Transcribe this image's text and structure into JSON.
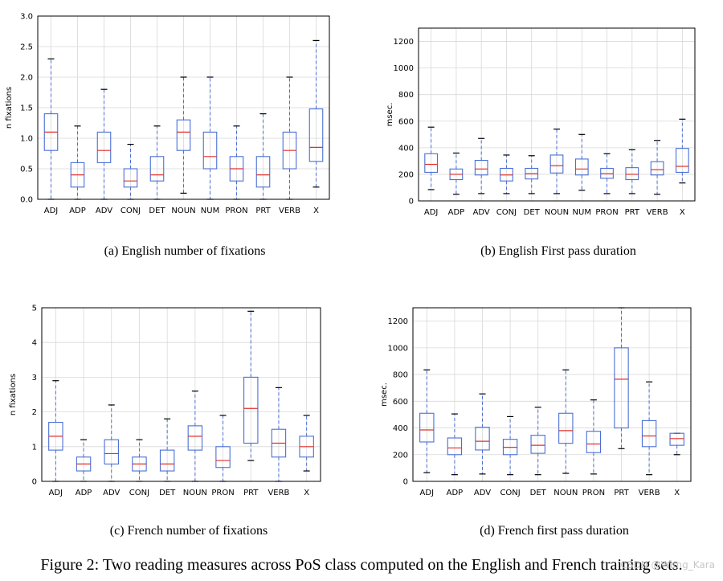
{
  "figure": {
    "caption": "Figure 2: Two reading measures across PoS class computed on the English and French training sets.",
    "watermark": "CSDN @Wimg_Kara"
  },
  "colors": {
    "box": "#4a6fd6",
    "median": "#e0302a",
    "grid": "#d8d8d8",
    "axis": "#000000"
  },
  "chart_data": [
    {
      "id": "a",
      "type": "box",
      "caption": "(a) English number of fixations",
      "ylabel": "n fixations",
      "xlabel": "",
      "ylim": [
        0,
        3.0
      ],
      "yticks": [
        "0.0",
        "0.5",
        "1.0",
        "1.5",
        "2.0",
        "2.5",
        "3.0"
      ],
      "ytick_values": [
        0,
        0.5,
        1.0,
        1.5,
        2.0,
        2.5,
        3.0
      ],
      "categories": [
        "ADJ",
        "ADP",
        "ADV",
        "CONJ",
        "DET",
        "NOUN",
        "NUM",
        "PRON",
        "PRT",
        "VERB",
        "X"
      ],
      "boxes": [
        {
          "whislo": 0.0,
          "q1": 0.8,
          "med": 1.1,
          "q3": 1.4,
          "whishi": 2.3
        },
        {
          "whislo": 0.0,
          "q1": 0.2,
          "med": 0.4,
          "q3": 0.6,
          "whishi": 1.2
        },
        {
          "whislo": 0.0,
          "q1": 0.6,
          "med": 0.8,
          "q3": 1.1,
          "whishi": 1.8
        },
        {
          "whislo": 0.0,
          "q1": 0.2,
          "med": 0.3,
          "q3": 0.5,
          "whishi": 0.9
        },
        {
          "whislo": 0.0,
          "q1": 0.3,
          "med": 0.4,
          "q3": 0.7,
          "whishi": 1.2
        },
        {
          "whislo": 0.1,
          "q1": 0.8,
          "med": 1.1,
          "q3": 1.3,
          "whishi": 2.0
        },
        {
          "whislo": 0.0,
          "q1": 0.5,
          "med": 0.7,
          "q3": 1.1,
          "whishi": 2.0
        },
        {
          "whislo": 0.0,
          "q1": 0.3,
          "med": 0.5,
          "q3": 0.7,
          "whishi": 1.2
        },
        {
          "whislo": 0.0,
          "q1": 0.2,
          "med": 0.4,
          "q3": 0.7,
          "whishi": 1.4
        },
        {
          "whislo": 0.0,
          "q1": 0.5,
          "med": 0.8,
          "q3": 1.1,
          "whishi": 2.0
        },
        {
          "whislo": 0.2,
          "q1": 0.62,
          "med": 0.85,
          "q3": 1.48,
          "whishi": 2.6
        }
      ]
    },
    {
      "id": "b",
      "type": "box",
      "caption": "(b) English First pass duration",
      "ylabel": "msec.",
      "xlabel": "",
      "ylim": [
        0,
        1300
      ],
      "yticks": [
        "0",
        "200",
        "400",
        "600",
        "800",
        "1000",
        "1200"
      ],
      "ytick_values": [
        0,
        200,
        400,
        600,
        800,
        1000,
        1200
      ],
      "categories": [
        "ADJ",
        "ADP",
        "ADV",
        "CONJ",
        "DET",
        "NOUN",
        "NUM",
        "PRON",
        "PRT",
        "VERB",
        "X"
      ],
      "boxes": [
        {
          "whislo": 85,
          "q1": 215,
          "med": 275,
          "q3": 355,
          "whishi": 555
        },
        {
          "whislo": 50,
          "q1": 160,
          "med": 200,
          "q3": 240,
          "whishi": 360
        },
        {
          "whislo": 55,
          "q1": 195,
          "med": 240,
          "q3": 305,
          "whishi": 470
        },
        {
          "whislo": 55,
          "q1": 150,
          "med": 195,
          "q3": 245,
          "whishi": 345
        },
        {
          "whislo": 55,
          "q1": 165,
          "med": 205,
          "q3": 245,
          "whishi": 340
        },
        {
          "whislo": 55,
          "q1": 210,
          "med": 265,
          "q3": 345,
          "whishi": 540
        },
        {
          "whislo": 80,
          "q1": 195,
          "med": 240,
          "q3": 315,
          "whishi": 500
        },
        {
          "whislo": 55,
          "q1": 170,
          "med": 205,
          "q3": 245,
          "whishi": 355
        },
        {
          "whislo": 55,
          "q1": 160,
          "med": 200,
          "q3": 250,
          "whishi": 385
        },
        {
          "whislo": 50,
          "q1": 195,
          "med": 235,
          "q3": 295,
          "whishi": 455
        },
        {
          "whislo": 135,
          "q1": 215,
          "med": 260,
          "q3": 395,
          "whishi": 615
        }
      ]
    },
    {
      "id": "c",
      "type": "box",
      "caption": "(c) French number of fixations",
      "ylabel": "n fixations",
      "xlabel": "",
      "ylim": [
        0,
        5
      ],
      "yticks": [
        "0",
        "1",
        "2",
        "3",
        "4",
        "5"
      ],
      "ytick_values": [
        0,
        1,
        2,
        3,
        4,
        5
      ],
      "categories": [
        "ADJ",
        "ADP",
        "ADV",
        "CONJ",
        "DET",
        "NOUN",
        "PRON",
        "PRT",
        "VERB",
        "X"
      ],
      "boxes": [
        {
          "whislo": 0.0,
          "q1": 0.9,
          "med": 1.3,
          "q3": 1.7,
          "whishi": 2.9
        },
        {
          "whislo": 0.0,
          "q1": 0.3,
          "med": 0.5,
          "q3": 0.7,
          "whishi": 1.2
        },
        {
          "whislo": 0.0,
          "q1": 0.5,
          "med": 0.8,
          "q3": 1.2,
          "whishi": 2.2
        },
        {
          "whislo": 0.0,
          "q1": 0.3,
          "med": 0.5,
          "q3": 0.7,
          "whishi": 1.2
        },
        {
          "whislo": 0.0,
          "q1": 0.3,
          "med": 0.5,
          "q3": 0.9,
          "whishi": 1.8
        },
        {
          "whislo": 0.0,
          "q1": 0.9,
          "med": 1.3,
          "q3": 1.6,
          "whishi": 2.6
        },
        {
          "whislo": 0.0,
          "q1": 0.4,
          "med": 0.6,
          "q3": 1.0,
          "whishi": 1.9
        },
        {
          "whislo": 0.6,
          "q1": 1.1,
          "med": 2.1,
          "q3": 3.0,
          "whishi": 4.9
        },
        {
          "whislo": 0.0,
          "q1": 0.7,
          "med": 1.1,
          "q3": 1.5,
          "whishi": 2.7
        },
        {
          "whislo": 0.3,
          "q1": 0.7,
          "med": 1.0,
          "q3": 1.3,
          "whishi": 1.9
        }
      ]
    },
    {
      "id": "d",
      "type": "box",
      "caption": "(d) French first pass duration",
      "ylabel": "msec.",
      "xlabel": "",
      "ylim": [
        0,
        1300
      ],
      "yticks": [
        "0",
        "200",
        "400",
        "600",
        "800",
        "1000",
        "1200"
      ],
      "ytick_values": [
        0,
        200,
        400,
        600,
        800,
        1000,
        1200
      ],
      "categories": [
        "ADJ",
        "ADP",
        "ADV",
        "CONJ",
        "DET",
        "NOUN",
        "PRON",
        "PRT",
        "VERB",
        "X"
      ],
      "boxes": [
        {
          "whislo": 65,
          "q1": 295,
          "med": 385,
          "q3": 510,
          "whishi": 835
        },
        {
          "whislo": 50,
          "q1": 200,
          "med": 250,
          "q3": 325,
          "whishi": 505
        },
        {
          "whislo": 55,
          "q1": 235,
          "med": 300,
          "q3": 405,
          "whishi": 655
        },
        {
          "whislo": 50,
          "q1": 200,
          "med": 255,
          "q3": 315,
          "whishi": 485
        },
        {
          "whislo": 50,
          "q1": 210,
          "med": 270,
          "q3": 345,
          "whishi": 555
        },
        {
          "whislo": 60,
          "q1": 285,
          "med": 380,
          "q3": 510,
          "whishi": 835
        },
        {
          "whislo": 55,
          "q1": 215,
          "med": 280,
          "q3": 375,
          "whishi": 610
        },
        {
          "whislo": 245,
          "q1": 400,
          "med": 765,
          "q3": 1000,
          "whishi": 1300
        },
        {
          "whislo": 50,
          "q1": 260,
          "med": 340,
          "q3": 455,
          "whishi": 745
        },
        {
          "whislo": 200,
          "q1": 270,
          "med": 320,
          "q3": 360,
          "whishi": 360
        }
      ]
    }
  ]
}
